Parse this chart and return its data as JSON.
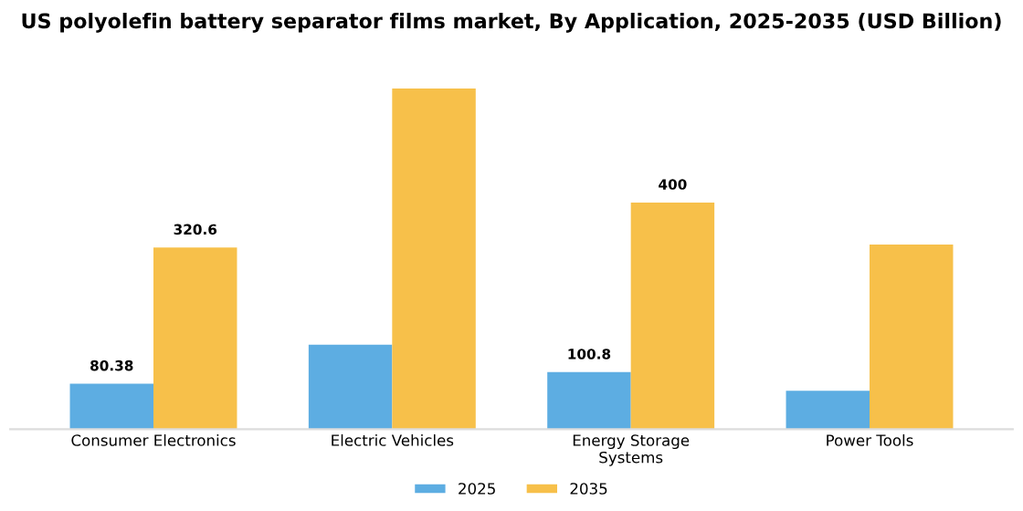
{
  "chart_data": {
    "type": "bar",
    "title": "US polyolefin battery separator films market, By Application, 2025-2035 (USD Billion)",
    "categories": [
      "Consumer Electronics",
      "Electric Vehicles",
      "Energy Storage\nSystems",
      "Power Tools"
    ],
    "series": [
      {
        "name": "2025",
        "color": "#5dade2",
        "values": [
          80.38,
          149,
          100.8,
          68
        ],
        "value_labels": [
          "80.38",
          null,
          "100.8",
          null
        ]
      },
      {
        "name": "2035",
        "color": "#f7c04a",
        "values": [
          320.6,
          601,
          400,
          326
        ],
        "value_labels": [
          "320.6",
          null,
          "400",
          null
        ]
      }
    ],
    "tick_labels": "x",
    "grid": false,
    "legend": "bottom"
  }
}
